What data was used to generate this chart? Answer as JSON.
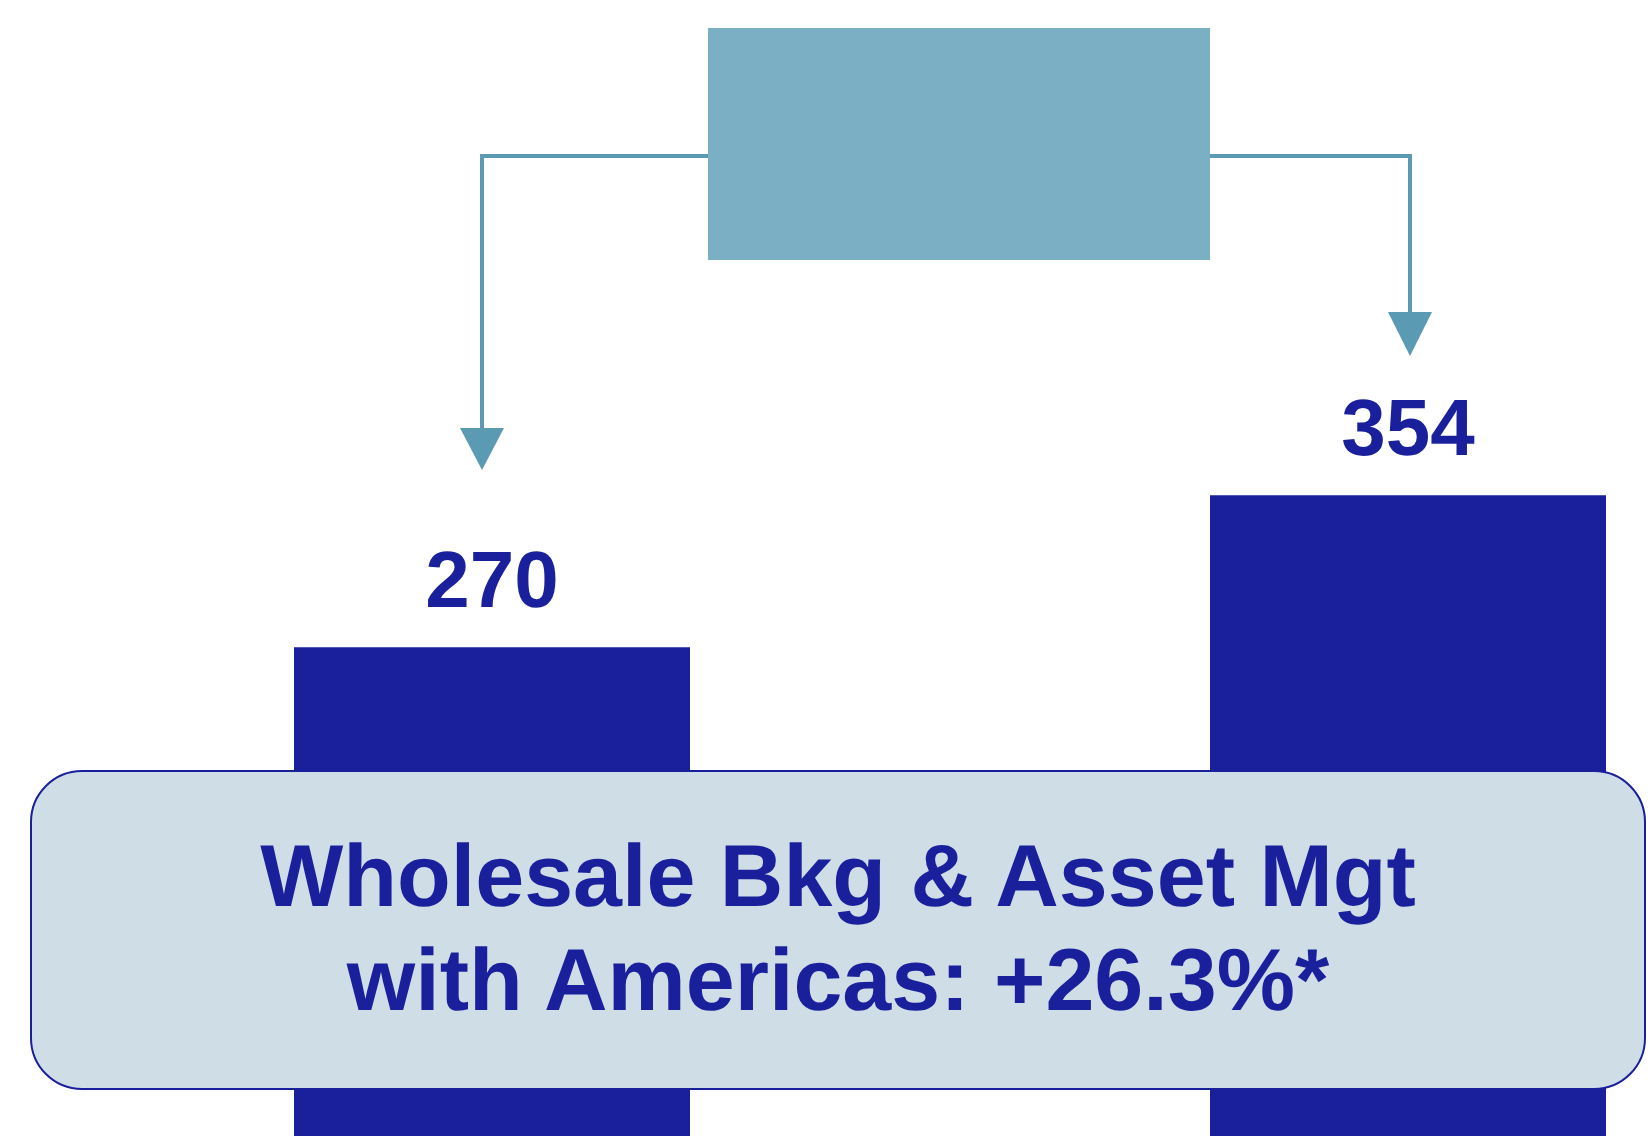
{
  "chart_data": {
    "type": "bar",
    "categories": [
      null,
      null
    ],
    "values": [
      270,
      354
    ],
    "color": "#1a1f9c",
    "data_labels": true,
    "annotations": [
      "Wholesale Bkg & Asset Mgt with Americas: +26.3%*"
    ]
  }
}
